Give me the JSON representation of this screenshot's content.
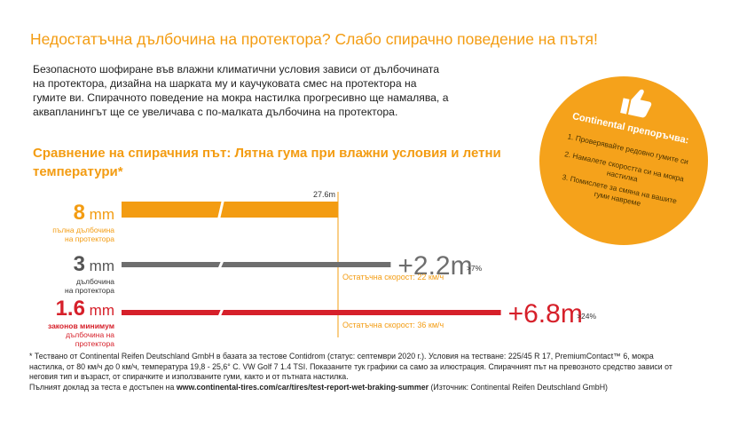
{
  "headline": "Недостатъчна дълбочина на протектора? Слабо спирачно поведение на пътя!",
  "intro": "Безопасното шофиране във влажни климатични условия зависи от дълбочината на протектора, дизайна на шарката му и каучуковата смес на протектора на гумите ви. Спирачното поведение на мокра настилка прогресивно ще намалява, а аквапланингът ще се увеличава с по-малката дълбочина на протектора.",
  "chart_title": "Сравнение на спирачния път: Лятна гума при влажни условия и летни температури*",
  "colors": {
    "orange": "#f39c12",
    "gray": "#6e6e6e",
    "red": "#d6202a",
    "badge": "#f5a21b"
  },
  "chart_data": {
    "type": "bar",
    "orientation": "horizontal",
    "categories": [
      "8 mm",
      "3 mm",
      "1.6 mm"
    ],
    "units": "m",
    "baseline_value": 27.6,
    "baseline_label": "27.6m",
    "bars": [
      {
        "depth": "8",
        "unit": "mm",
        "sublabel": [
          "пълна дълбочина",
          "на протектора"
        ],
        "color": "#f39c12",
        "extra_distance": 0,
        "delta_label": "",
        "pct_label": "",
        "speed_label": ""
      },
      {
        "depth": "3",
        "unit": "mm",
        "sublabel": [
          "дълбочина",
          "на протектора"
        ],
        "color": "#6e6e6e",
        "extra_distance": 2.2,
        "delta_label": "+2.2m",
        "pct_label": ">7%",
        "speed_label": "Остатъчна скорост: 22 км/ч"
      },
      {
        "depth": "1.6",
        "unit": "mm",
        "sublabel": [
          "законов минимум",
          "дълбочина на",
          "протектора"
        ],
        "color": "#d6202a",
        "extra_distance": 6.8,
        "delta_label": "+6.8m",
        "pct_label": ">24%",
        "speed_label": "Остатъчна скорост: 36 км/ч"
      }
    ]
  },
  "badge": {
    "title": "Continental препоръчва:",
    "tips": [
      "1. Проверявайте редовно гумите си",
      "2. Намалете скоростта си на мокра настилка",
      "3. Помислете за смяна на вашите гуми навреме"
    ],
    "icon": "thumbs-up-icon"
  },
  "footnote": {
    "line1": "* Тествано от Continental Reifen Deutschland GmbH в базата за тестове Contidrom (статус: септември 2020 г.). Условия на тестване: 225/45 R 17, PremiumContact™ 6, мокра настилка, от 80 км/ч до 0 км/ч, температура 19,8 - 25,6° C. VW Golf 7 1.4 TSI. Показаните тук графики са само за илюстрация. Спирачният път на превозното средство зависи от неговия тип и възраст, от спирачките и използваните гуми, както и от пътната настилка.",
    "line2_prefix": "Пълният доклад за теста е достъпен на ",
    "line2_url": "www.continental-tires.com/car/tires/test-report-wet-braking-summer",
    "line2_suffix": " (Източник: Continental Reifen Deutschland GmbH)"
  }
}
